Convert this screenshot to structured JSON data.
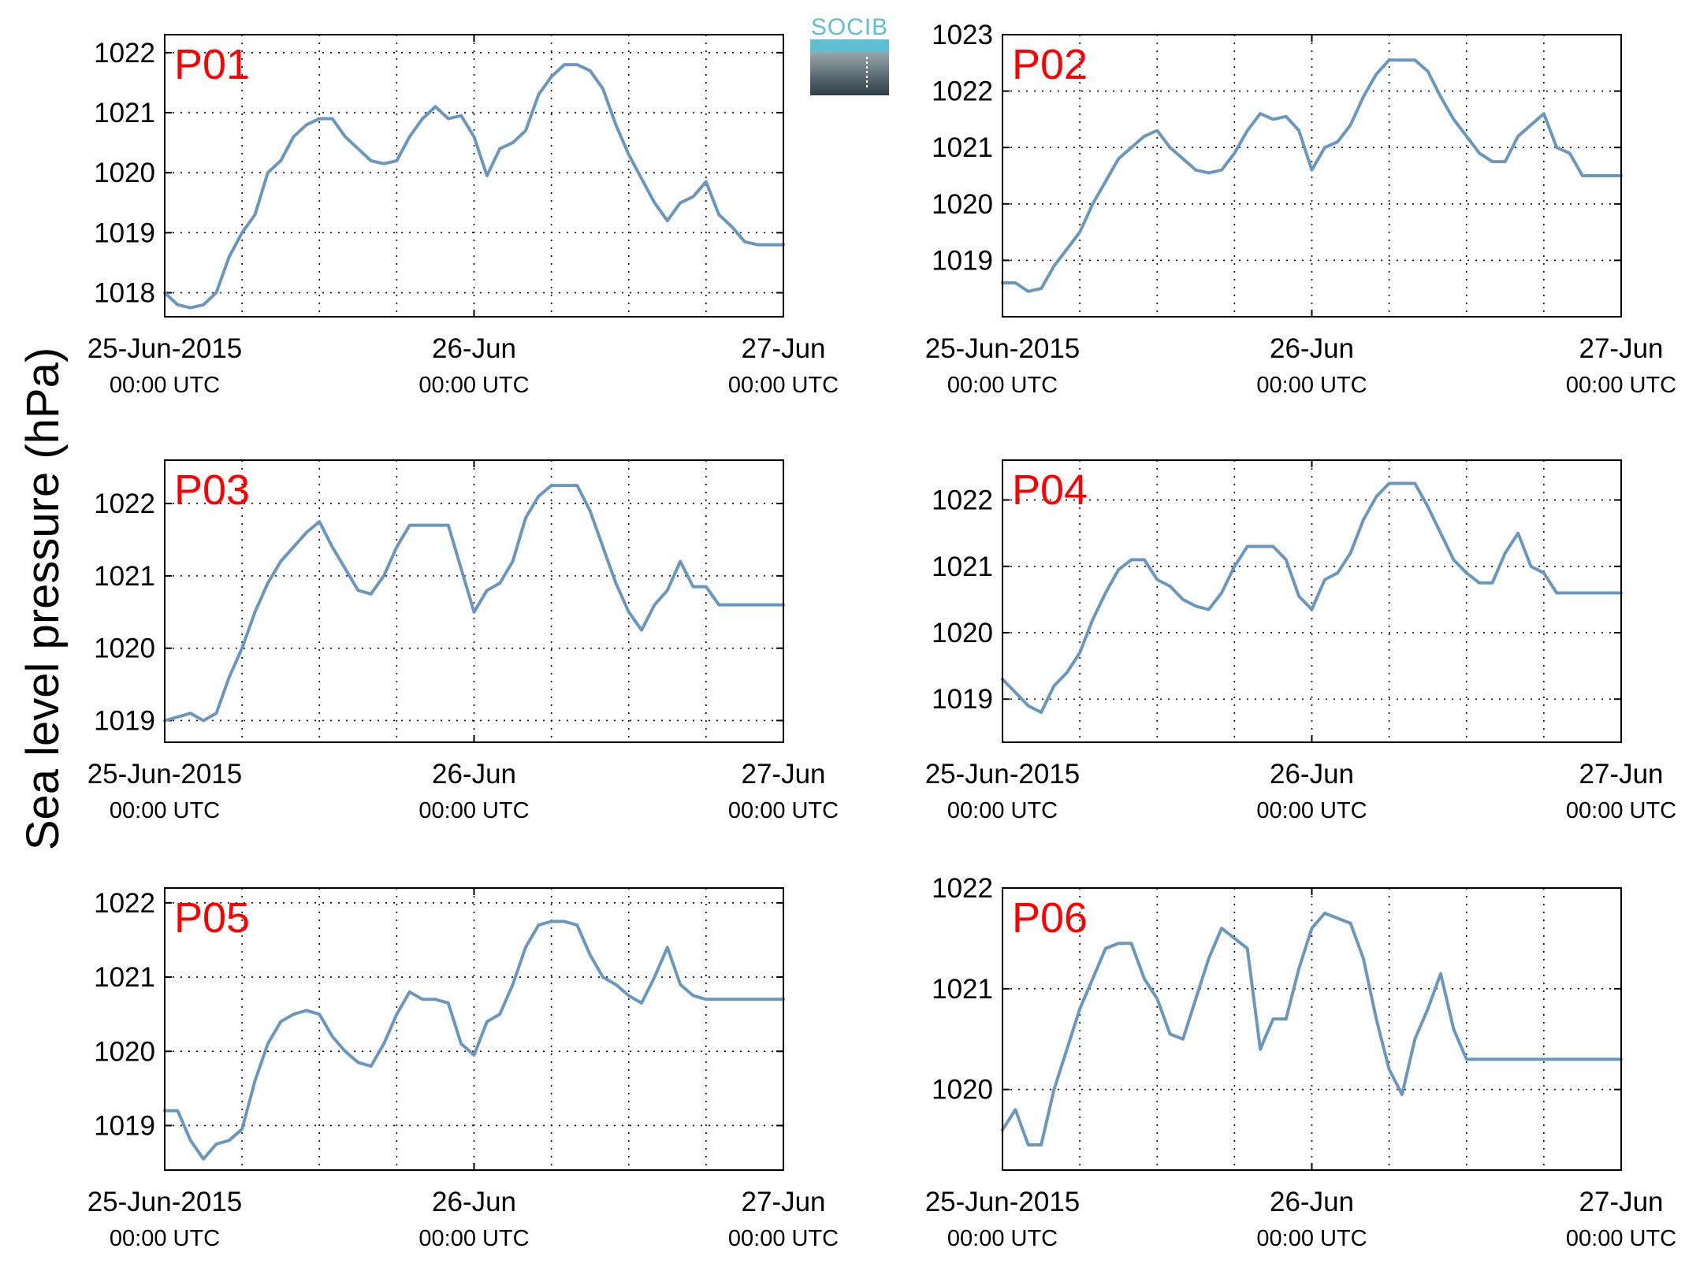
{
  "figure": {
    "ylabel": "Sea level pressure (hPa)",
    "logo_text": "SOCIB",
    "line_color": "#6a97bb",
    "label_color": "#ff0000",
    "x_ticks": [
      {
        "line1": "25-Jun-2015",
        "line2": "00:00 UTC"
      },
      {
        "line1": "26-Jun",
        "line2": "00:00 UTC"
      },
      {
        "line1": "27-Jun",
        "line2": "00:00 UTC"
      }
    ]
  },
  "chart_data": [
    {
      "type": "line",
      "title": "P01",
      "x_unit": "hours since 25-Jun-2015 00:00 UTC",
      "xlim": [
        0,
        48
      ],
      "ylim": [
        1017.6,
        1022.3
      ],
      "y_ticks": [
        1018,
        1019,
        1020,
        1021,
        1022
      ],
      "x": [
        0,
        1,
        2,
        3,
        4,
        5,
        6,
        7,
        8,
        9,
        10,
        11,
        12,
        13,
        14,
        15,
        16,
        17,
        18,
        19,
        20,
        21,
        22,
        23,
        24,
        25,
        26,
        27,
        28,
        29,
        30,
        31,
        32,
        33,
        34,
        35,
        36,
        37,
        38,
        39,
        40,
        41,
        42,
        43,
        44,
        45,
        46,
        47,
        48
      ],
      "values": [
        1018.0,
        1017.8,
        1017.75,
        1017.8,
        1018.0,
        1018.6,
        1019.0,
        1019.3,
        1020.0,
        1020.2,
        1020.6,
        1020.8,
        1020.9,
        1020.9,
        1020.6,
        1020.4,
        1020.2,
        1020.15,
        1020.2,
        1020.6,
        1020.9,
        1021.1,
        1020.9,
        1020.95,
        1020.6,
        1019.95,
        1020.4,
        1020.5,
        1020.7,
        1021.3,
        1021.6,
        1021.8,
        1021.8,
        1021.7,
        1021.4,
        1020.8,
        1020.3,
        1019.9,
        1019.5,
        1019.2,
        1019.5,
        1019.6,
        1019.85,
        1019.3,
        1019.1,
        1018.85,
        1018.8,
        1018.8,
        1018.8
      ]
    },
    {
      "type": "line",
      "title": "P02",
      "x_unit": "hours since 25-Jun-2015 00:00 UTC",
      "xlim": [
        0,
        48
      ],
      "ylim": [
        1018.0,
        1023.0
      ],
      "y_ticks": [
        1019,
        1020,
        1021,
        1022,
        1023
      ],
      "x": [
        0,
        1,
        2,
        3,
        4,
        5,
        6,
        7,
        8,
        9,
        10,
        11,
        12,
        13,
        14,
        15,
        16,
        17,
        18,
        19,
        20,
        21,
        22,
        23,
        24,
        25,
        26,
        27,
        28,
        29,
        30,
        31,
        32,
        33,
        34,
        35,
        36,
        37,
        38,
        39,
        40,
        41,
        42,
        43,
        44,
        45,
        46,
        47,
        48
      ],
      "values": [
        1018.6,
        1018.6,
        1018.45,
        1018.5,
        1018.9,
        1019.2,
        1019.5,
        1020.0,
        1020.4,
        1020.8,
        1021.0,
        1021.2,
        1021.3,
        1021.0,
        1020.8,
        1020.6,
        1020.55,
        1020.6,
        1020.9,
        1021.3,
        1021.6,
        1021.5,
        1021.55,
        1021.3,
        1020.6,
        1021.0,
        1021.1,
        1021.4,
        1021.9,
        1022.3,
        1022.55,
        1022.55,
        1022.55,
        1022.35,
        1021.9,
        1021.5,
        1021.2,
        1020.9,
        1020.75,
        1020.75,
        1021.2,
        1021.4,
        1021.6,
        1021.0,
        1020.9,
        1020.5,
        1020.5,
        1020.5,
        1020.5
      ]
    },
    {
      "type": "line",
      "title": "P03",
      "x_unit": "hours since 25-Jun-2015 00:00 UTC",
      "xlim": [
        0,
        48
      ],
      "ylim": [
        1018.7,
        1022.6
      ],
      "y_ticks": [
        1019,
        1020,
        1021,
        1022
      ],
      "x": [
        0,
        1,
        2,
        3,
        4,
        5,
        6,
        7,
        8,
        9,
        10,
        11,
        12,
        13,
        14,
        15,
        16,
        17,
        18,
        19,
        20,
        21,
        22,
        23,
        24,
        25,
        26,
        27,
        28,
        29,
        30,
        31,
        32,
        33,
        34,
        35,
        36,
        37,
        38,
        39,
        40,
        41,
        42,
        43,
        44,
        45,
        46,
        47,
        48
      ],
      "values": [
        1019.0,
        1019.05,
        1019.1,
        1019.0,
        1019.1,
        1019.6,
        1020.0,
        1020.5,
        1020.9,
        1021.2,
        1021.4,
        1021.6,
        1021.75,
        1021.4,
        1021.1,
        1020.8,
        1020.75,
        1021.0,
        1021.4,
        1021.7,
        1021.7,
        1021.7,
        1021.7,
        1021.1,
        1020.5,
        1020.8,
        1020.9,
        1021.2,
        1021.8,
        1022.1,
        1022.25,
        1022.25,
        1022.25,
        1021.9,
        1021.4,
        1020.9,
        1020.5,
        1020.25,
        1020.6,
        1020.8,
        1021.2,
        1020.85,
        1020.85,
        1020.6,
        1020.6,
        1020.6,
        1020.6,
        1020.6,
        1020.6
      ]
    },
    {
      "type": "line",
      "title": "P04",
      "x_unit": "hours since 25-Jun-2015 00:00 UTC",
      "xlim": [
        0,
        48
      ],
      "ylim": [
        1018.35,
        1022.6
      ],
      "y_ticks": [
        1019,
        1020,
        1021,
        1022
      ],
      "x": [
        0,
        1,
        2,
        3,
        4,
        5,
        6,
        7,
        8,
        9,
        10,
        11,
        12,
        13,
        14,
        15,
        16,
        17,
        18,
        19,
        20,
        21,
        22,
        23,
        24,
        25,
        26,
        27,
        28,
        29,
        30,
        31,
        32,
        33,
        34,
        35,
        36,
        37,
        38,
        39,
        40,
        41,
        42,
        43,
        44,
        45,
        46,
        47,
        48
      ],
      "values": [
        1019.3,
        1019.1,
        1018.9,
        1018.8,
        1019.2,
        1019.4,
        1019.7,
        1020.2,
        1020.6,
        1020.95,
        1021.1,
        1021.1,
        1020.8,
        1020.7,
        1020.5,
        1020.4,
        1020.35,
        1020.6,
        1021.0,
        1021.3,
        1021.3,
        1021.3,
        1021.1,
        1020.55,
        1020.35,
        1020.8,
        1020.9,
        1021.2,
        1021.7,
        1022.05,
        1022.25,
        1022.25,
        1022.25,
        1021.9,
        1021.5,
        1021.1,
        1020.9,
        1020.75,
        1020.75,
        1021.2,
        1021.5,
        1021.0,
        1020.9,
        1020.6,
        1020.6,
        1020.6,
        1020.6,
        1020.6,
        1020.6
      ]
    },
    {
      "type": "line",
      "title": "P05",
      "x_unit": "hours since 25-Jun-2015 00:00 UTC",
      "xlim": [
        0,
        48
      ],
      "ylim": [
        1018.4,
        1022.2
      ],
      "y_ticks": [
        1019,
        1020,
        1021,
        1022
      ],
      "x": [
        0,
        1,
        2,
        3,
        4,
        5,
        6,
        7,
        8,
        9,
        10,
        11,
        12,
        13,
        14,
        15,
        16,
        17,
        18,
        19,
        20,
        21,
        22,
        23,
        24,
        25,
        26,
        27,
        28,
        29,
        30,
        31,
        32,
        33,
        34,
        35,
        36,
        37,
        38,
        39,
        40,
        41,
        42,
        43,
        44,
        45,
        46,
        47,
        48
      ],
      "values": [
        1019.2,
        1019.2,
        1018.8,
        1018.55,
        1018.75,
        1018.8,
        1018.95,
        1019.6,
        1020.1,
        1020.4,
        1020.5,
        1020.55,
        1020.5,
        1020.2,
        1020.0,
        1019.85,
        1019.8,
        1020.1,
        1020.5,
        1020.8,
        1020.7,
        1020.7,
        1020.65,
        1020.1,
        1019.95,
        1020.4,
        1020.5,
        1020.9,
        1021.4,
        1021.7,
        1021.75,
        1021.75,
        1021.7,
        1021.3,
        1021.0,
        1020.9,
        1020.75,
        1020.65,
        1021.0,
        1021.4,
        1020.9,
        1020.75,
        1020.7,
        1020.7,
        1020.7,
        1020.7,
        1020.7,
        1020.7,
        1020.7
      ]
    },
    {
      "type": "line",
      "title": "P06",
      "x_unit": "hours since 25-Jun-2015 00:00 UTC",
      "xlim": [
        0,
        48
      ],
      "ylim": [
        1019.2,
        1022.0
      ],
      "y_ticks": [
        1020,
        1021,
        1022
      ],
      "x": [
        0,
        1,
        2,
        3,
        4,
        5,
        6,
        7,
        8,
        9,
        10,
        11,
        12,
        13,
        14,
        15,
        16,
        17,
        18,
        19,
        20,
        21,
        22,
        23,
        24,
        25,
        26,
        27,
        28,
        29,
        30,
        31,
        32,
        33,
        34,
        35,
        36,
        37,
        38,
        39,
        40,
        41,
        42,
        43,
        44,
        45,
        46,
        47,
        48
      ],
      "values": [
        1019.6,
        1019.8,
        1019.45,
        1019.45,
        1020.0,
        1020.4,
        1020.8,
        1021.1,
        1021.4,
        1021.45,
        1021.45,
        1021.1,
        1020.9,
        1020.55,
        1020.5,
        1020.9,
        1021.3,
        1021.6,
        1021.5,
        1021.4,
        1020.4,
        1020.7,
        1020.7,
        1021.2,
        1021.6,
        1021.75,
        1021.7,
        1021.65,
        1021.3,
        1020.7,
        1020.2,
        1019.95,
        1020.5,
        1020.8,
        1021.15,
        1020.6,
        1020.3,
        1020.3,
        1020.3,
        1020.3,
        1020.3,
        1020.3,
        1020.3,
        1020.3,
        1020.3,
        1020.3,
        1020.3,
        1020.3,
        1020.3
      ]
    }
  ]
}
